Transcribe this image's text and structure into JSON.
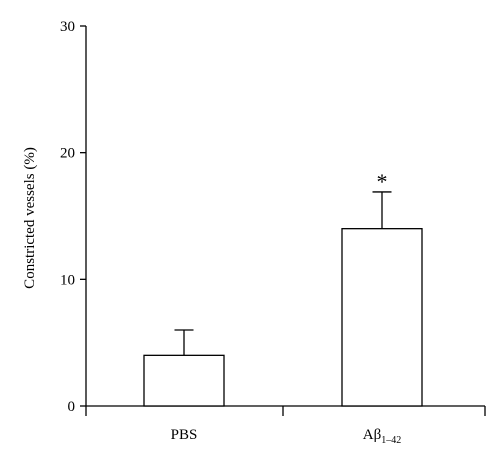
{
  "chart_data": {
    "type": "bar",
    "title": "",
    "xlabel": "",
    "ylabel": "Constricted vessels (%)",
    "ylim": [
      0,
      30
    ],
    "yticks": [
      0,
      10,
      20,
      30
    ],
    "ytick_labels": [
      "0",
      "10",
      "20",
      "30"
    ],
    "categories": [
      "PBS",
      "Aβ1–42"
    ],
    "category_parts": [
      {
        "main": "PBS",
        "sub": ""
      },
      {
        "main": "Aβ",
        "sub": "1–42"
      }
    ],
    "values": [
      4,
      14
    ],
    "errors": [
      2,
      2.9
    ],
    "annotations": [
      "",
      "*"
    ],
    "grid": false,
    "bar_fill": "#ffffff",
    "stroke_color": "#000000"
  }
}
